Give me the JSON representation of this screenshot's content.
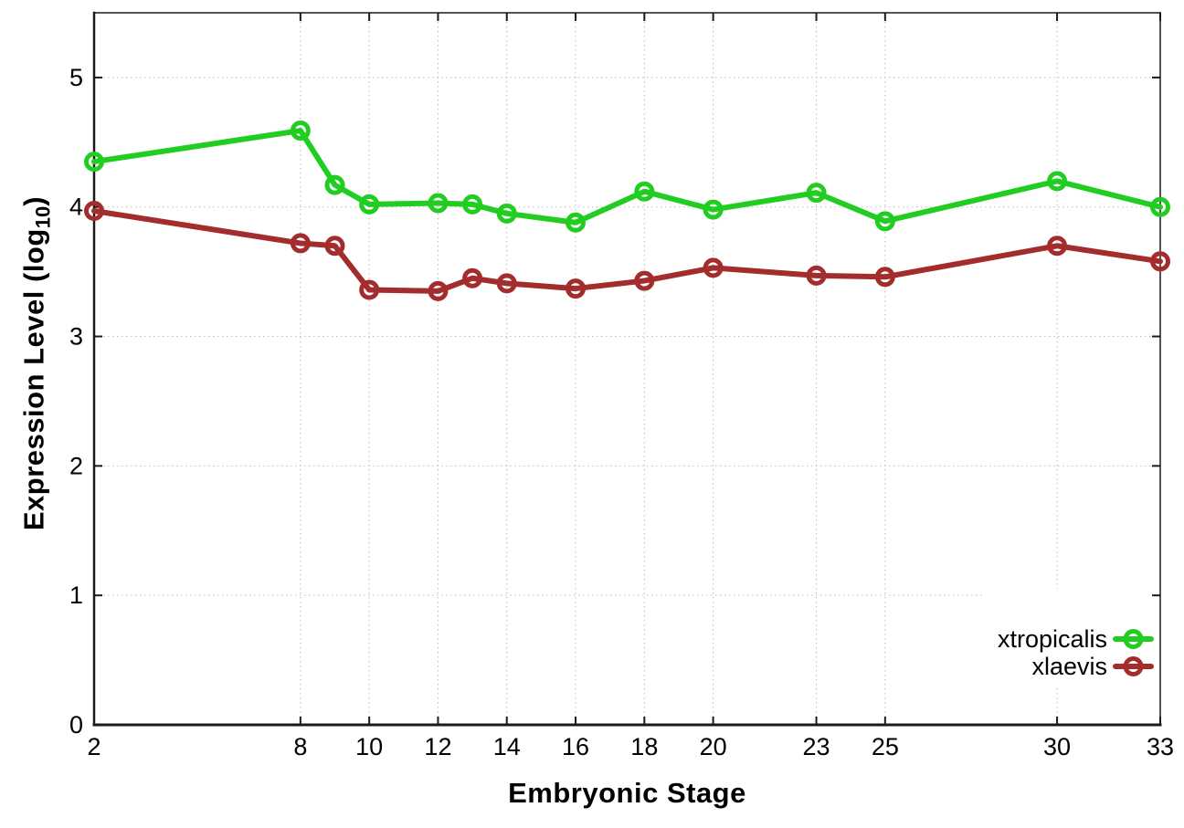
{
  "chart_data": {
    "type": "line",
    "title": "",
    "xlabel": "Embryonic Stage",
    "ylabel": "Expression Level (log10)",
    "ylabel_parts": {
      "main": "Expression Level (log",
      "sub": "10",
      "close": ")"
    },
    "xlim": [
      2,
      33
    ],
    "ylim": [
      0,
      5.5
    ],
    "grid": true,
    "x_tick_values": [
      2,
      8,
      10,
      12,
      14,
      16,
      18,
      20,
      23,
      25,
      30,
      33
    ],
    "x_tick_labels": [
      "2",
      "8",
      "10",
      "12",
      "14",
      "16",
      "18",
      "20",
      "23",
      "25",
      "30",
      "33"
    ],
    "y_tick_values": [
      0,
      1,
      2,
      3,
      4,
      5
    ],
    "y_tick_labels": [
      "0",
      "1",
      "2",
      "3",
      "4",
      "5"
    ],
    "x": [
      2,
      8,
      9,
      10,
      12,
      13,
      14,
      16,
      18,
      20,
      23,
      25,
      30,
      33
    ],
    "series": [
      {
        "name": "xtropicalis",
        "color": "#22cd22",
        "marker": "open-circle",
        "values": [
          4.35,
          4.59,
          4.17,
          4.02,
          4.03,
          4.02,
          3.95,
          3.88,
          4.12,
          3.98,
          4.11,
          3.89,
          4.2,
          4.0
        ]
      },
      {
        "name": "xlaevis",
        "color": "#a32c2c",
        "marker": "open-circle",
        "values": [
          3.97,
          3.72,
          3.7,
          3.36,
          3.35,
          3.45,
          3.41,
          3.37,
          3.43,
          3.53,
          3.47,
          3.46,
          3.7,
          3.58
        ]
      }
    ],
    "legend_position": "inside-bottom-right",
    "legend_entries": [
      "xtropicalis",
      "xlaevis"
    ]
  },
  "style_colors": {
    "background": "#ffffff",
    "border": "#1a1a1a",
    "grid": "#bdbdbd",
    "text": "#000000"
  }
}
